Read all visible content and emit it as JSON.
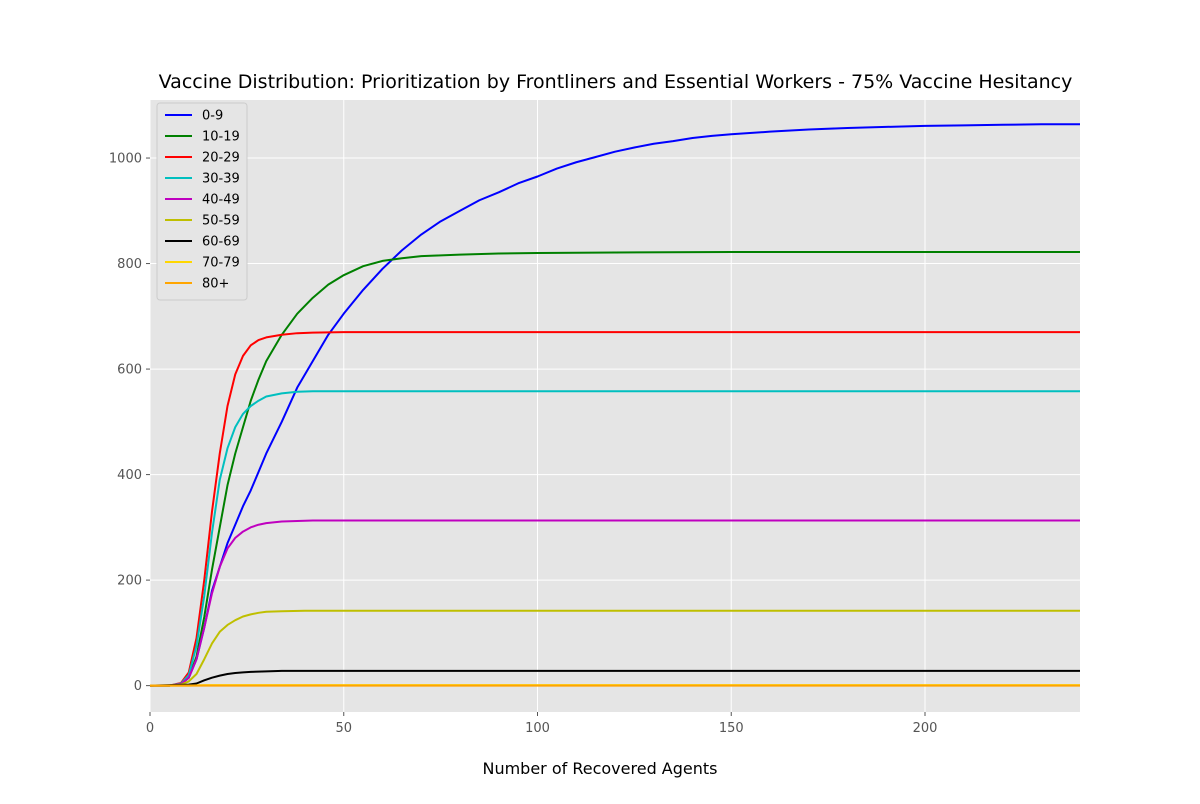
{
  "chart_data": {
    "type": "line",
    "title": "Vaccine Distribution: Prioritization by Frontliners and Essential Workers - 75% Vaccine Hesitancy",
    "xlabel": "Number of Recovered Agents",
    "ylabel": "",
    "xlim": [
      0,
      240
    ],
    "ylim": [
      -50,
      1110
    ],
    "xticks": [
      0,
      50,
      100,
      150,
      200
    ],
    "yticks": [
      0,
      200,
      400,
      600,
      800,
      1000
    ],
    "grid": true,
    "legend_position": "top-left",
    "background": "#e5e5e5",
    "series": [
      {
        "name": "0-9",
        "color": "#0000ff",
        "points": [
          [
            0,
            0
          ],
          [
            5,
            0
          ],
          [
            8,
            3
          ],
          [
            10,
            15
          ],
          [
            12,
            50
          ],
          [
            14,
            110
          ],
          [
            16,
            180
          ],
          [
            18,
            225
          ],
          [
            20,
            270
          ],
          [
            22,
            305
          ],
          [
            24,
            340
          ],
          [
            26,
            370
          ],
          [
            28,
            405
          ],
          [
            30,
            440
          ],
          [
            34,
            500
          ],
          [
            38,
            565
          ],
          [
            42,
            615
          ],
          [
            46,
            665
          ],
          [
            50,
            705
          ],
          [
            55,
            750
          ],
          [
            60,
            790
          ],
          [
            65,
            825
          ],
          [
            70,
            855
          ],
          [
            75,
            880
          ],
          [
            80,
            900
          ],
          [
            85,
            920
          ],
          [
            90,
            935
          ],
          [
            95,
            952
          ],
          [
            100,
            965
          ],
          [
            105,
            980
          ],
          [
            110,
            992
          ],
          [
            115,
            1002
          ],
          [
            120,
            1012
          ],
          [
            125,
            1020
          ],
          [
            130,
            1027
          ],
          [
            135,
            1032
          ],
          [
            140,
            1038
          ],
          [
            145,
            1042
          ],
          [
            150,
            1045
          ],
          [
            160,
            1050
          ],
          [
            170,
            1054
          ],
          [
            180,
            1057
          ],
          [
            190,
            1059
          ],
          [
            200,
            1061
          ],
          [
            210,
            1062
          ],
          [
            220,
            1063
          ],
          [
            230,
            1064
          ],
          [
            240,
            1064
          ]
        ]
      },
      {
        "name": "10-19",
        "color": "#008000",
        "points": [
          [
            0,
            0
          ],
          [
            5,
            0
          ],
          [
            8,
            3
          ],
          [
            10,
            15
          ],
          [
            12,
            55
          ],
          [
            14,
            130
          ],
          [
            16,
            220
          ],
          [
            18,
            300
          ],
          [
            20,
            380
          ],
          [
            22,
            440
          ],
          [
            24,
            490
          ],
          [
            26,
            540
          ],
          [
            28,
            580
          ],
          [
            30,
            615
          ],
          [
            34,
            665
          ],
          [
            38,
            705
          ],
          [
            42,
            735
          ],
          [
            46,
            760
          ],
          [
            50,
            778
          ],
          [
            55,
            795
          ],
          [
            60,
            805
          ],
          [
            65,
            810
          ],
          [
            70,
            814
          ],
          [
            80,
            817
          ],
          [
            90,
            819
          ],
          [
            100,
            820
          ],
          [
            120,
            821
          ],
          [
            150,
            822
          ],
          [
            240,
            822
          ]
        ]
      },
      {
        "name": "20-29",
        "color": "#ff0000",
        "points": [
          [
            0,
            0
          ],
          [
            5,
            0
          ],
          [
            8,
            5
          ],
          [
            10,
            25
          ],
          [
            12,
            90
          ],
          [
            14,
            200
          ],
          [
            16,
            330
          ],
          [
            18,
            440
          ],
          [
            20,
            530
          ],
          [
            22,
            590
          ],
          [
            24,
            625
          ],
          [
            26,
            645
          ],
          [
            28,
            655
          ],
          [
            30,
            660
          ],
          [
            34,
            665
          ],
          [
            38,
            668
          ],
          [
            42,
            669
          ],
          [
            50,
            670
          ],
          [
            240,
            670
          ]
        ]
      },
      {
        "name": "30-39",
        "color": "#00bfbf",
        "points": [
          [
            0,
            0
          ],
          [
            5,
            0
          ],
          [
            8,
            4
          ],
          [
            10,
            20
          ],
          [
            12,
            75
          ],
          [
            14,
            170
          ],
          [
            16,
            290
          ],
          [
            18,
            390
          ],
          [
            20,
            450
          ],
          [
            22,
            490
          ],
          [
            24,
            515
          ],
          [
            26,
            530
          ],
          [
            28,
            540
          ],
          [
            30,
            548
          ],
          [
            34,
            554
          ],
          [
            38,
            557
          ],
          [
            42,
            558
          ],
          [
            50,
            558
          ],
          [
            240,
            558
          ]
        ]
      },
      {
        "name": "40-49",
        "color": "#bf00bf",
        "points": [
          [
            0,
            0
          ],
          [
            5,
            0
          ],
          [
            8,
            3
          ],
          [
            10,
            15
          ],
          [
            12,
            50
          ],
          [
            14,
            110
          ],
          [
            16,
            175
          ],
          [
            18,
            225
          ],
          [
            20,
            260
          ],
          [
            22,
            280
          ],
          [
            24,
            292
          ],
          [
            26,
            300
          ],
          [
            28,
            305
          ],
          [
            30,
            308
          ],
          [
            34,
            311
          ],
          [
            38,
            312
          ],
          [
            42,
            313
          ],
          [
            240,
            313
          ]
        ]
      },
      {
        "name": "50-59",
        "color": "#bfbf00",
        "points": [
          [
            0,
            0
          ],
          [
            5,
            0
          ],
          [
            8,
            2
          ],
          [
            10,
            8
          ],
          [
            12,
            22
          ],
          [
            14,
            50
          ],
          [
            16,
            80
          ],
          [
            18,
            102
          ],
          [
            20,
            115
          ],
          [
            22,
            124
          ],
          [
            24,
            131
          ],
          [
            26,
            135
          ],
          [
            28,
            138
          ],
          [
            30,
            140
          ],
          [
            34,
            141
          ],
          [
            40,
            142
          ],
          [
            240,
            142
          ]
        ]
      },
      {
        "name": "60-69",
        "color": "#000000",
        "points": [
          [
            0,
            0
          ],
          [
            10,
            2
          ],
          [
            12,
            4
          ],
          [
            14,
            10
          ],
          [
            16,
            15
          ],
          [
            18,
            19
          ],
          [
            20,
            22
          ],
          [
            22,
            24
          ],
          [
            24,
            25
          ],
          [
            26,
            26
          ],
          [
            30,
            27
          ],
          [
            34,
            28
          ],
          [
            240,
            28
          ]
        ]
      },
      {
        "name": "70-79",
        "color": "#ffd700",
        "points": [
          [
            0,
            0
          ],
          [
            10,
            0
          ],
          [
            12,
            0.5
          ],
          [
            14,
            1
          ],
          [
            240,
            1
          ]
        ]
      },
      {
        "name": "80+",
        "color": "#ffa500",
        "points": [
          [
            0,
            0
          ],
          [
            240,
            0
          ]
        ]
      }
    ]
  }
}
